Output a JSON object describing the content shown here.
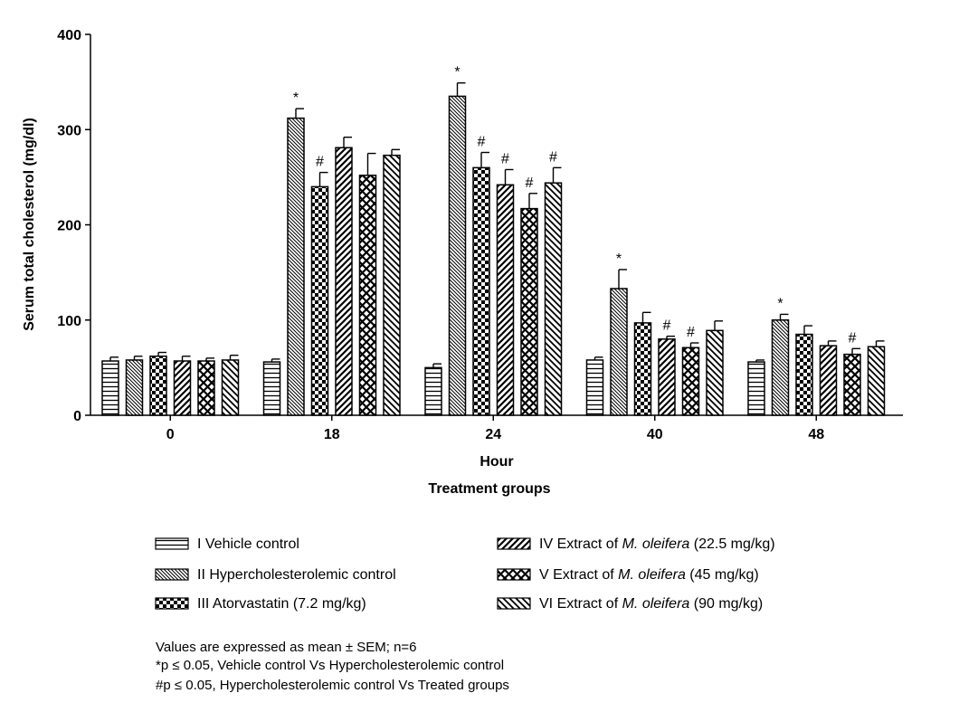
{
  "chart_data": {
    "type": "bar",
    "ylabel": "Serum total cholesterol (mg/dl)",
    "xlabel": "Hour",
    "xlabel2": "Treatment groups",
    "ylim": [
      0,
      400
    ],
    "yticks": [
      0,
      100,
      200,
      300,
      400
    ],
    "categories": [
      "0",
      "18",
      "24",
      "40",
      "48"
    ],
    "series": [
      {
        "name": "I Vehicle control",
        "pattern": "hlines",
        "values": [
          57,
          56,
          50,
          58,
          56
        ],
        "errors": [
          4,
          3,
          4,
          3,
          2
        ],
        "marks": [
          "",
          "",
          "",
          "",
          ""
        ]
      },
      {
        "name": "II Hypercholesterolemic control",
        "pattern": "diag-left-fine",
        "values": [
          58,
          312,
          335,
          133,
          100
        ],
        "errors": [
          4,
          10,
          14,
          20,
          6
        ],
        "marks": [
          "",
          "*",
          "*",
          "*",
          "*"
        ]
      },
      {
        "name": "III Atorvastatin (7.2 mg/kg)",
        "pattern": "checker",
        "values": [
          62,
          240,
          260,
          97,
          85
        ],
        "errors": [
          4,
          15,
          16,
          11,
          9
        ],
        "marks": [
          "",
          "#",
          "#",
          "",
          ""
        ]
      },
      {
        "name_parts": [
          "IV Extract of ",
          "M. oleifera",
          " (22.5 mg/kg)"
        ],
        "pattern": "diag-right",
        "values": [
          57,
          281,
          242,
          80,
          73
        ],
        "errors": [
          5,
          11,
          16,
          3,
          5
        ],
        "marks": [
          "",
          "",
          "#",
          "#",
          ""
        ]
      },
      {
        "name_parts": [
          "V Extract of ",
          "M.  oleifera",
          " (45 mg/kg)"
        ],
        "pattern": "crosshatch",
        "values": [
          57,
          252,
          217,
          71,
          64
        ],
        "errors": [
          3,
          23,
          16,
          5,
          6
        ],
        "marks": [
          "",
          "",
          "#",
          "#",
          "#"
        ]
      },
      {
        "name_parts": [
          "VI Extract of ",
          "M. oleifera",
          " (90 mg/kg)"
        ],
        "pattern": "diag-left",
        "values": [
          58,
          273,
          244,
          89,
          72
        ],
        "errors": [
          5,
          6,
          16,
          10,
          6
        ],
        "marks": [
          "",
          "",
          "#",
          "",
          ""
        ]
      }
    ]
  },
  "notes": [
    "Values are expressed as mean ± SEM; n=6",
    "*p ≤ 0.05, Vehicle control Vs Hypercholesterolemic control",
    "#p ≤ 0.05, Hypercholesterolemic control Vs Treated groups"
  ]
}
